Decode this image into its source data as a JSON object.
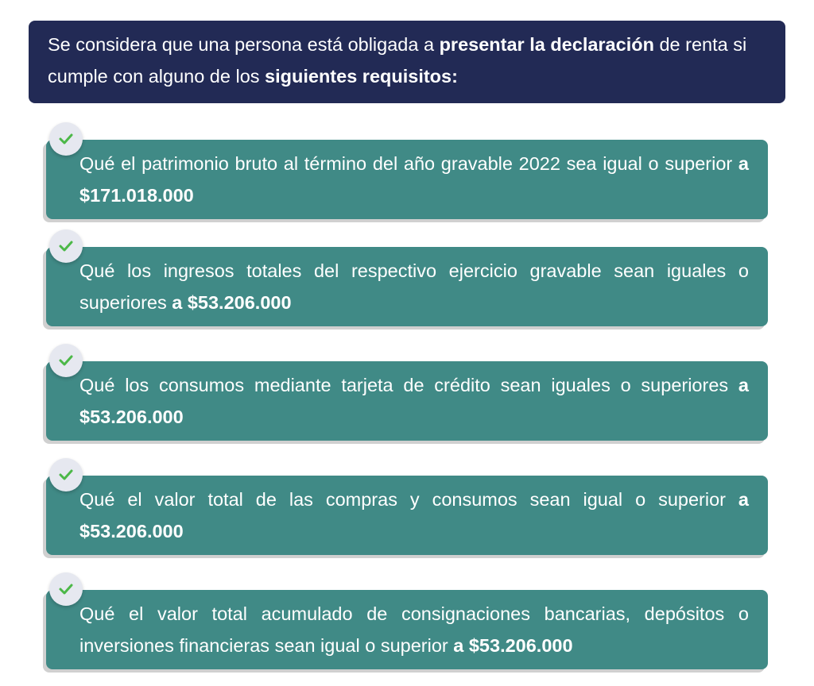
{
  "header": {
    "t1": "Se considera que una persona está obligada a ",
    "b1": "presentar la declaración",
    "t2": " de renta si cumple con alguno de los ",
    "b2": "siguientes requisitos:"
  },
  "items": [
    {
      "text": "Qué el patrimonio bruto al término del año gravable 2022 sea igual o superior ",
      "bold": "a $171.018.000"
    },
    {
      "text": "Qué los ingresos totales del respectivo ejercicio gravable sean iguales o superiores ",
      "bold": "a $53.206.000"
    },
    {
      "text": "Qué los consumos mediante tarjeta de crédito sean iguales o superiores ",
      "bold": "a $53.206.000"
    },
    {
      "text": "Qué el valor total de las compras y consumos sean igual o superior ",
      "bold": "a $53.206.000"
    },
    {
      "text": "Qué el valor total acumulado de consignaciones bancarias, depósitos o inversiones financieras sean igual o superior ",
      "bold": "a $53.206.000"
    }
  ],
  "colors": {
    "header": "#222a55",
    "item": "#408a86",
    "check": "#4cb848"
  },
  "icon": "check-icon"
}
